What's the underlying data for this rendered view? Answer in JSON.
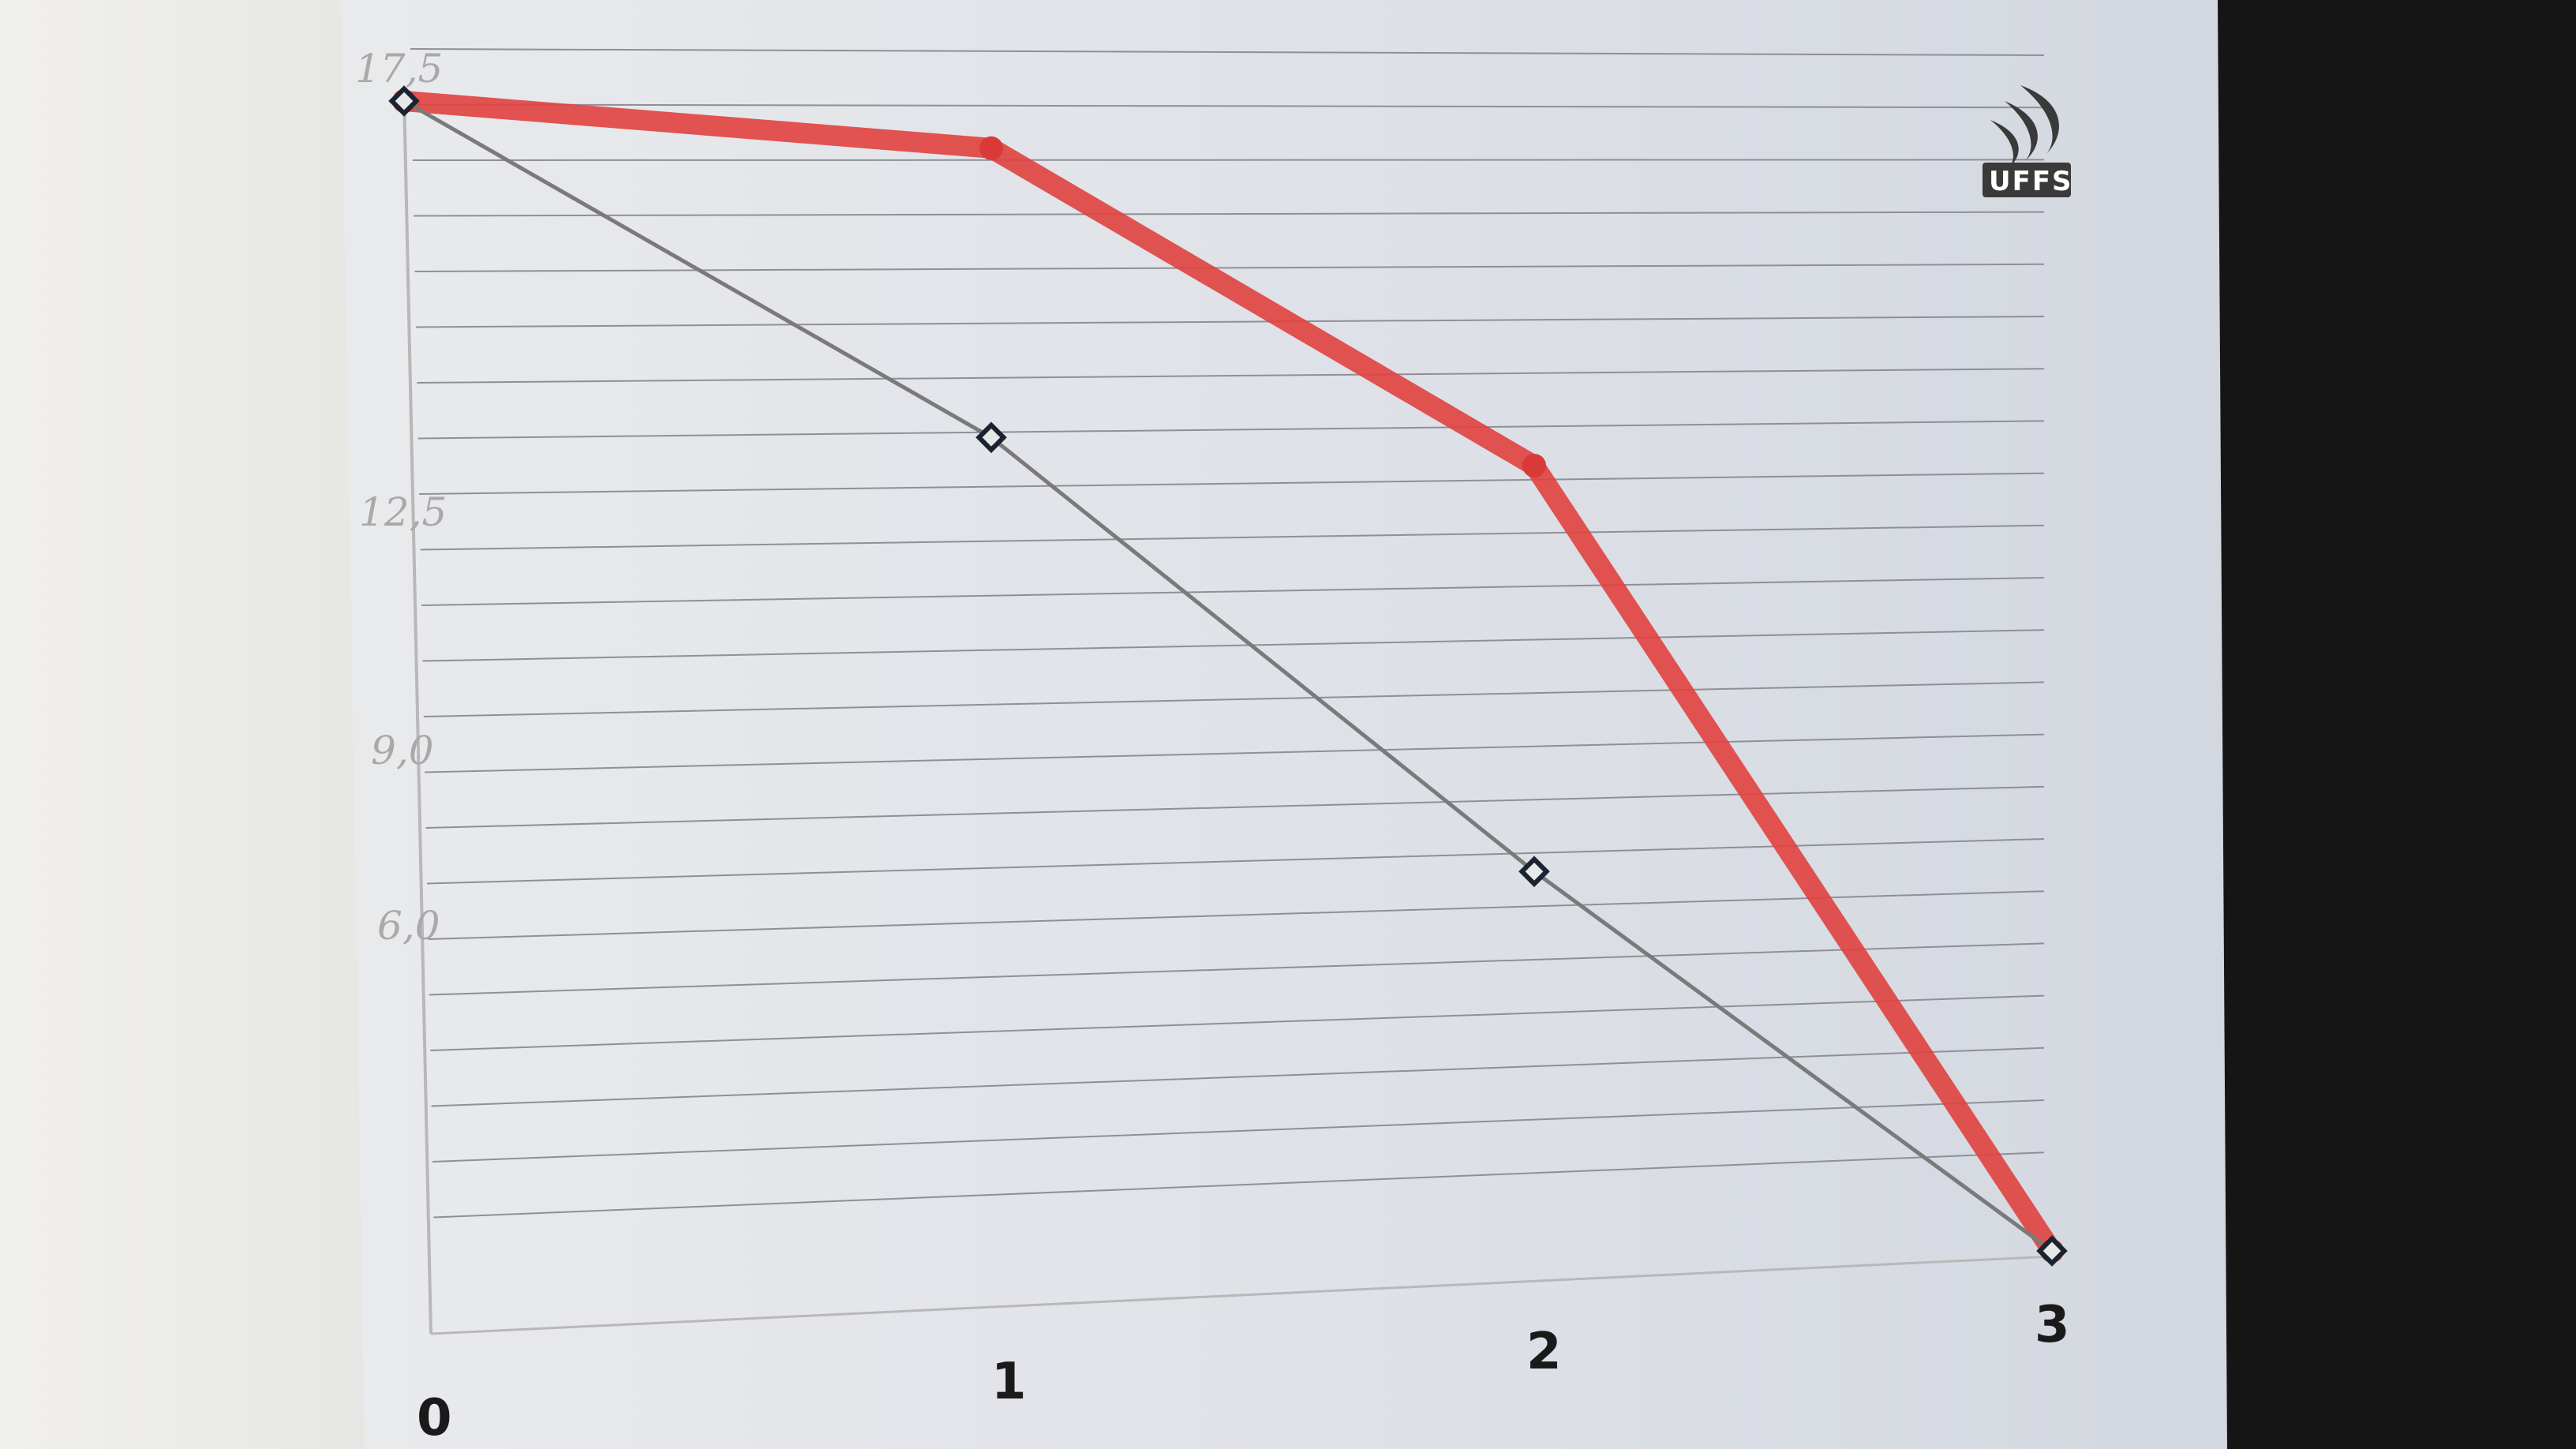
{
  "logo": {
    "text": "UFFS"
  },
  "chart_data": {
    "type": "line",
    "x": [
      0,
      1,
      2,
      3
    ],
    "x_tick_labels": [
      "0",
      "1",
      "2",
      "3"
    ],
    "y_tick_labels": [
      "17,5",
      "12,5",
      "9,0",
      "6,0"
    ],
    "y_tick_values": [
      17.5,
      12.5,
      9.0,
      6.0
    ],
    "series": [
      {
        "values": [
          17.5,
          16.7,
          11.9,
          0
        ],
        "color": "#e0413f"
      },
      {
        "values": [
          17.5,
          12.5,
          5.9,
          0
        ],
        "color": "#7a7a7a"
      }
    ],
    "xlim": [
      0,
      3
    ],
    "ylim": [
      0,
      17.5
    ],
    "grid": "horizontal ruled lines",
    "legend": "none"
  }
}
